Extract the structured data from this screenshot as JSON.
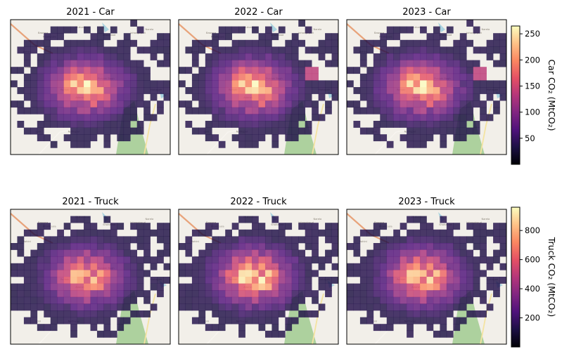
{
  "chart_data": {
    "type": "heatmap",
    "grid": {
      "cols": 24,
      "rows": 20
    },
    "colormap": "magma",
    "panels": [
      {
        "title": "2021 - Car",
        "variable": "car",
        "year": 2021,
        "scale": 0.97
      },
      {
        "title": "2022 - Car",
        "variable": "car",
        "year": 2022,
        "scale": 0.99
      },
      {
        "title": "2023 - Car",
        "variable": "car",
        "year": 2023,
        "scale": 1.0
      },
      {
        "title": "2021 - Truck",
        "variable": "truck",
        "year": 2021,
        "scale": 0.86
      },
      {
        "title": "2022 - Truck",
        "variable": "truck",
        "year": 2022,
        "scale": 1.0
      },
      {
        "title": "2023 - Truck",
        "variable": "truck",
        "year": 2023,
        "scale": 0.94
      }
    ],
    "colorbars": [
      {
        "variable": "car",
        "label": "Car CO₂ (MtCO₂)",
        "min": 0,
        "max": 265,
        "ticks": [
          50,
          100,
          150,
          200,
          250
        ]
      },
      {
        "variable": "truck",
        "label": "Truck CO₂ (MtCO₂)",
        "min": 0,
        "max": 960,
        "ticks": [
          200,
          400,
          600,
          800
        ]
      }
    ],
    "basemap": {
      "place_labels": [
        "Mukundpur",
        "Shahabad",
        "Bawana",
        "Jahangirpuri",
        "Narela",
        "Rohini",
        "Chandana",
        "Pitampura",
        "Rohtak",
        "Punjabi Bagh",
        "Mahagah",
        "Adarsh",
        "Loni",
        "Nathupur"
      ]
    }
  }
}
